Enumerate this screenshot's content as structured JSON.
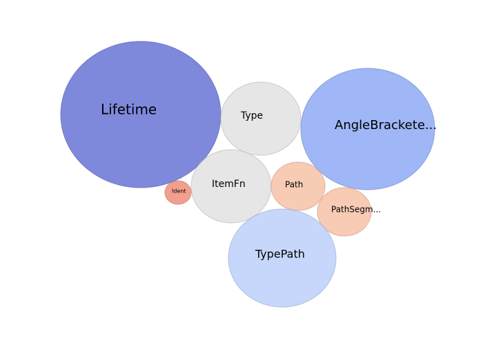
{
  "chart_data": {
    "type": "bubble",
    "bubbles": [
      {
        "label": "Lifetime",
        "color": "#6874d6"
      },
      {
        "label": "Type",
        "color": "#e2e2e2"
      },
      {
        "label": "AngleBrackete...",
        "color": "#8eaaf4"
      },
      {
        "label": "ItemFn",
        "color": "#e2e2e2"
      },
      {
        "label": "Path",
        "color": "#f7c2a8"
      },
      {
        "label": "Ident",
        "color": "#ee8e7a"
      },
      {
        "label": "PathSegm...",
        "color": "#f7c2a8"
      },
      {
        "label": "TypePath",
        "color": "#bcd0fa"
      }
    ]
  }
}
